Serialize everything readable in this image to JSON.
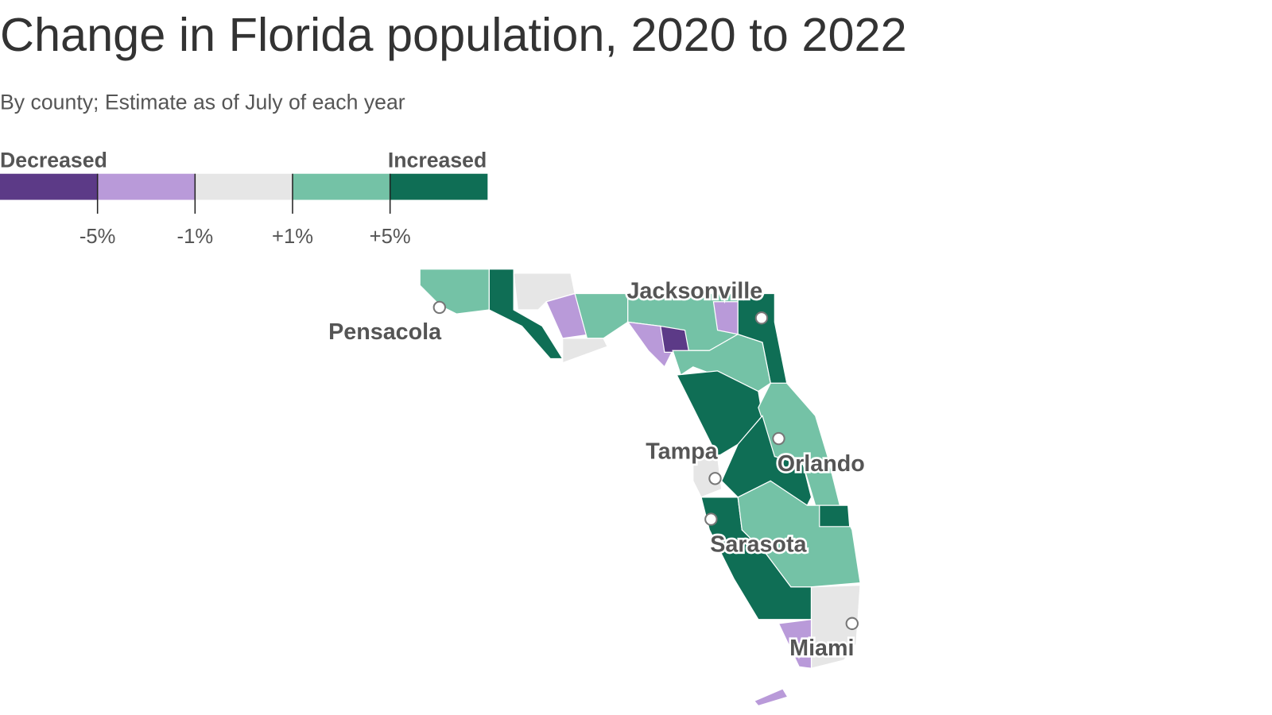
{
  "title": "Change in Florida population, 2020 to 2022",
  "subtitle": "By county; Estimate as of July of each year",
  "legend": {
    "low_label": "Decreased",
    "high_label": "Increased",
    "colors": [
      "#5c3a87",
      "#b99ad9",
      "#e6e6e6",
      "#74c2a6",
      "#0f6e55"
    ],
    "ticks": [
      {
        "value": -5,
        "label": "-5%"
      },
      {
        "value": -1,
        "label": "-1%"
      },
      {
        "value": 1,
        "label": "+1%"
      },
      {
        "value": 5,
        "label": "+5%"
      }
    ]
  },
  "cities": [
    "Pensacola",
    "Jacksonville",
    "Tampa",
    "Orlando",
    "Sarasota",
    "Miami"
  ]
}
